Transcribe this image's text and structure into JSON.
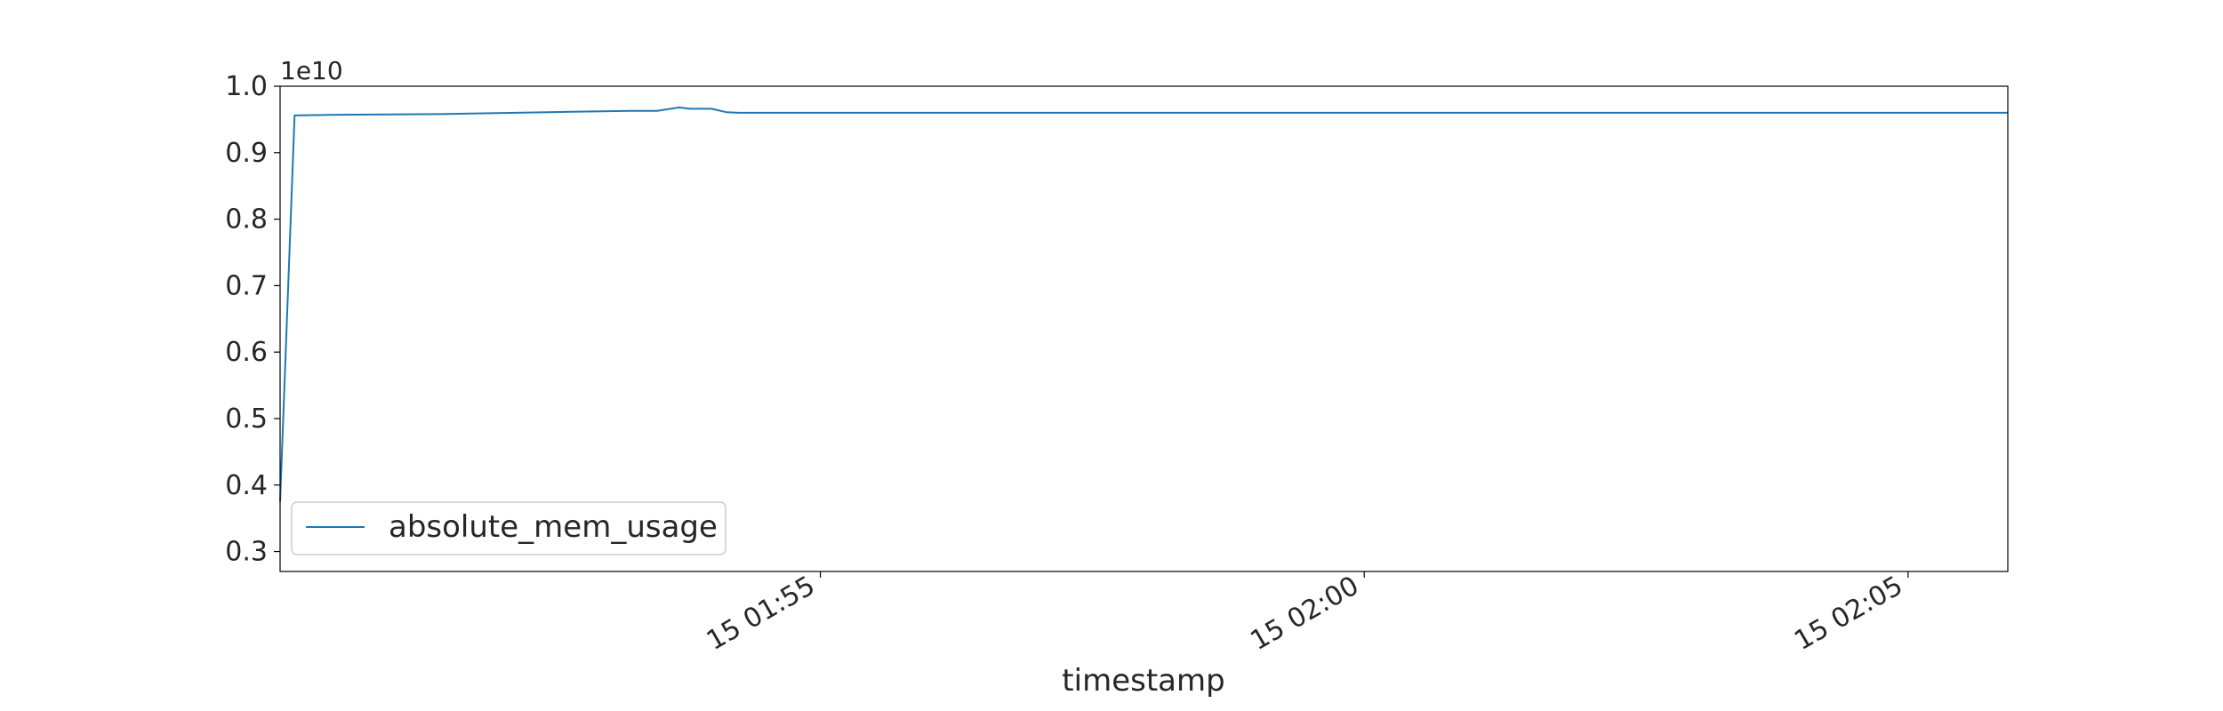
{
  "chart_data": {
    "type": "line",
    "title": "",
    "xlabel": "timestamp",
    "ylabel": "",
    "y_offset_label": "1e10",
    "x_ticks": [
      {
        "t": "01:55:00",
        "label": "15 01:55"
      },
      {
        "t": "02:00:00",
        "label": "15 02:00"
      },
      {
        "t": "02:05:00",
        "label": "15 02:05"
      }
    ],
    "xlim": [
      "01:50:02",
      "02:05:55"
    ],
    "y_ticks": [
      0.3,
      0.4,
      0.5,
      0.6,
      0.7,
      0.8,
      0.9,
      1.0
    ],
    "ylim": [
      0.27,
      1.0
    ],
    "grid": false,
    "legend_position": "lower-left",
    "series": [
      {
        "name": "absolute_mem_usage",
        "color": "#1f77b4",
        "points": [
          {
            "t": "01:50:02",
            "y": 0.375
          },
          {
            "t": "01:50:10",
            "y": 0.956
          },
          {
            "t": "01:50:30",
            "y": 0.957
          },
          {
            "t": "01:51:30",
            "y": 0.958
          },
          {
            "t": "01:52:30",
            "y": 0.961
          },
          {
            "t": "01:53:15",
            "y": 0.963
          },
          {
            "t": "01:53:30",
            "y": 0.963
          },
          {
            "t": "01:53:42",
            "y": 0.968
          },
          {
            "t": "01:53:48",
            "y": 0.966
          },
          {
            "t": "01:54:00",
            "y": 0.966
          },
          {
            "t": "01:54:08",
            "y": 0.961
          },
          {
            "t": "01:54:15",
            "y": 0.96
          },
          {
            "t": "01:55:00",
            "y": 0.96
          },
          {
            "t": "02:05:55",
            "y": 0.96
          }
        ]
      }
    ]
  }
}
